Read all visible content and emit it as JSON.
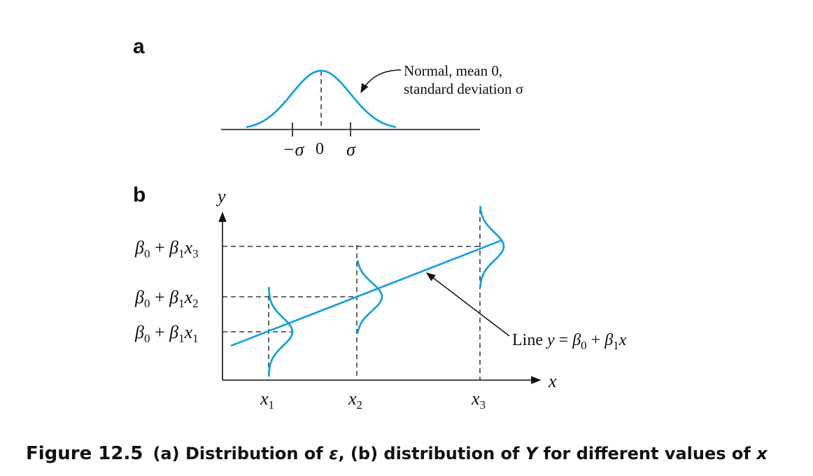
{
  "colors": {
    "accent": "#1aa3d6",
    "ink": "#111111",
    "background": "#ffffff"
  },
  "panel_a": {
    "letter": "a",
    "annotation_line1": "Normal, mean 0,",
    "annotation_line2": "standard deviation σ",
    "ticks": {
      "neg_sigma": "−σ",
      "zero": "0",
      "sigma": "σ"
    }
  },
  "panel_b": {
    "letter": "b",
    "y_axis_label": "y",
    "x_axis_label": "x",
    "level_labels": [
      {
        "base": "β",
        "sub0": "0",
        "plus": " + ",
        "base1": "β",
        "sub1": "1",
        "var": "x",
        "subx": "3"
      },
      {
        "base": "β",
        "sub0": "0",
        "plus": " + ",
        "base1": "β",
        "sub1": "1",
        "var": "x",
        "subx": "2"
      },
      {
        "base": "β",
        "sub0": "0",
        "plus": " + ",
        "base1": "β",
        "sub1": "1",
        "var": "x",
        "subx": "1"
      }
    ],
    "x_ticks": [
      {
        "var": "x",
        "sub": "1"
      },
      {
        "var": "x",
        "sub": "2"
      },
      {
        "var": "x",
        "sub": "3"
      }
    ],
    "line_annotation": {
      "prefix": "Line ",
      "y": "y",
      "eq": " = ",
      "b0": "β",
      "s0": "0",
      "plus": " + ",
      "b1": "β",
      "s1": "1",
      "x": "x"
    }
  },
  "caption": {
    "number": "Figure 12.5",
    "part_a": "(a) Distribution of ",
    "epsilon": "ε",
    "part_b": ", (b) distribution of ",
    "Y": "Y",
    "part_c": " for different values of ",
    "x": "x"
  }
}
